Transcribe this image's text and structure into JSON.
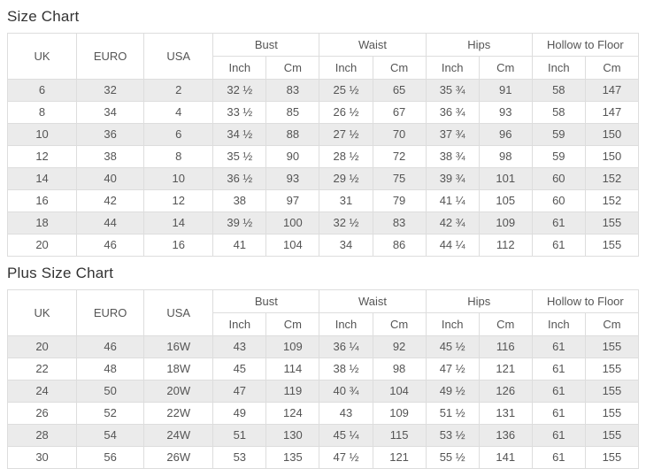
{
  "colors": {
    "stripe": "#ebebeb",
    "border": "#dddddd",
    "text": "#555555",
    "title": "#333333"
  },
  "sections": [
    {
      "title": "Size Chart",
      "table": {
        "simple_headers": [
          "UK",
          "EURO",
          "USA"
        ],
        "group_headers": [
          {
            "label": "Bust",
            "sub": [
              "Inch",
              "Cm"
            ]
          },
          {
            "label": "Waist",
            "sub": [
              "Inch",
              "Cm"
            ]
          },
          {
            "label": "Hips",
            "sub": [
              "Inch",
              "Cm"
            ]
          },
          {
            "label": "Hollow to Floor",
            "sub": [
              "Inch",
              "Cm"
            ]
          }
        ],
        "rows": [
          [
            "6",
            "32",
            "2",
            "32 ½",
            "83",
            "25 ½",
            "65",
            "35 ¾",
            "91",
            "58",
            "147"
          ],
          [
            "8",
            "34",
            "4",
            "33 ½",
            "85",
            "26 ½",
            "67",
            "36 ¾",
            "93",
            "58",
            "147"
          ],
          [
            "10",
            "36",
            "6",
            "34 ½",
            "88",
            "27 ½",
            "70",
            "37 ¾",
            "96",
            "59",
            "150"
          ],
          [
            "12",
            "38",
            "8",
            "35 ½",
            "90",
            "28 ½",
            "72",
            "38 ¾",
            "98",
            "59",
            "150"
          ],
          [
            "14",
            "40",
            "10",
            "36 ½",
            "93",
            "29 ½",
            "75",
            "39 ¾",
            "101",
            "60",
            "152"
          ],
          [
            "16",
            "42",
            "12",
            "38",
            "97",
            "31",
            "79",
            "41 ¼",
            "105",
            "60",
            "152"
          ],
          [
            "18",
            "44",
            "14",
            "39 ½",
            "100",
            "32 ½",
            "83",
            "42 ¾",
            "109",
            "61",
            "155"
          ],
          [
            "20",
            "46",
            "16",
            "41",
            "104",
            "34",
            "86",
            "44 ¼",
            "112",
            "61",
            "155"
          ]
        ]
      }
    },
    {
      "title": "Plus Size Chart",
      "table": {
        "simple_headers": [
          "UK",
          "EURO",
          "USA"
        ],
        "group_headers": [
          {
            "label": "Bust",
            "sub": [
              "Inch",
              "Cm"
            ]
          },
          {
            "label": "Waist",
            "sub": [
              "Inch",
              "Cm"
            ]
          },
          {
            "label": "Hips",
            "sub": [
              "Inch",
              "Cm"
            ]
          },
          {
            "label": "Hollow to Floor",
            "sub": [
              "Inch",
              "Cm"
            ]
          }
        ],
        "rows": [
          [
            "20",
            "46",
            "16W",
            "43",
            "109",
            "36 ¼",
            "92",
            "45 ½",
            "116",
            "61",
            "155"
          ],
          [
            "22",
            "48",
            "18W",
            "45",
            "114",
            "38 ½",
            "98",
            "47 ½",
            "121",
            "61",
            "155"
          ],
          [
            "24",
            "50",
            "20W",
            "47",
            "119",
            "40 ¾",
            "104",
            "49 ½",
            "126",
            "61",
            "155"
          ],
          [
            "26",
            "52",
            "22W",
            "49",
            "124",
            "43",
            "109",
            "51 ½",
            "131",
            "61",
            "155"
          ],
          [
            "28",
            "54",
            "24W",
            "51",
            "130",
            "45 ¼",
            "115",
            "53 ½",
            "136",
            "61",
            "155"
          ],
          [
            "30",
            "56",
            "26W",
            "53",
            "135",
            "47 ½",
            "121",
            "55 ½",
            "141",
            "61",
            "155"
          ]
        ]
      }
    }
  ]
}
